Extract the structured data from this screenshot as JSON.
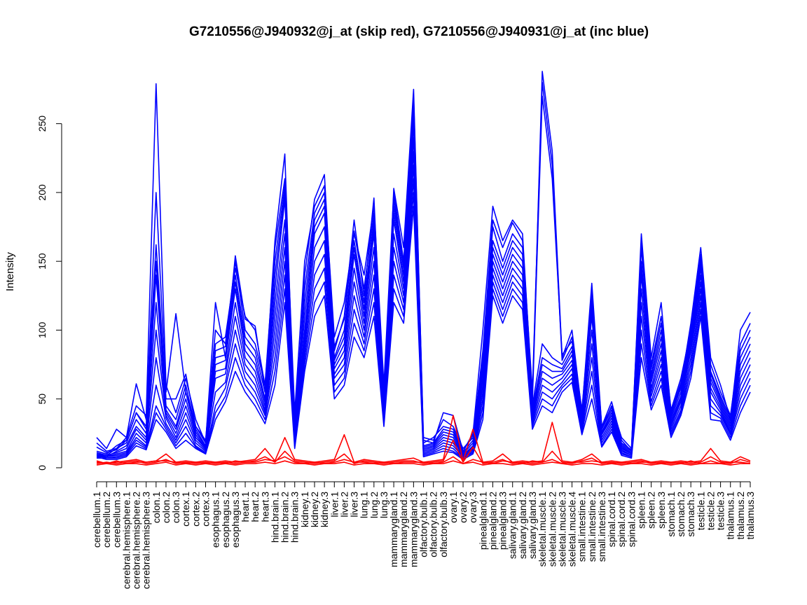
{
  "chart_data": {
    "type": "line",
    "title": "G7210556@J940932@j_at (skip red), G7210556@J940931@j_at (inc blue)",
    "xlabel": "",
    "ylabel": "Intensity",
    "ylim": [
      0,
      290
    ],
    "yticks": [
      0,
      50,
      100,
      150,
      200,
      250
    ],
    "grid": false,
    "legend": "none",
    "colors": {
      "skip": "#ff0000",
      "inc": "#0000ff"
    },
    "categories": [
      "cerebellum.1",
      "cerebellum.2",
      "cerebellum.3",
      "cerebral.hemisphere.1",
      "cerebral.hemisphere.2",
      "cerebral.hemisphere.3",
      "colon.1",
      "colon.2",
      "colon.3",
      "cortex.1",
      "cortex.2",
      "cortex.3",
      "esophagus.1",
      "esophagus.2",
      "esophagus.3",
      "heart.1",
      "heart.2",
      "heart.3",
      "hind.brain.1",
      "hind.brain.2",
      "hind.brain.3",
      "kidney.1",
      "kidney.2",
      "kidney.3",
      "liver.1",
      "liver.2",
      "liver.3",
      "lung.1",
      "lung.2",
      "lung.3",
      "mammarygland.1",
      "mammarygland.2",
      "mammarygland.3",
      "olfactory.bulb.1",
      "olfactory.bulb.2",
      "olfactory.bulb.3",
      "ovary.1",
      "ovary.2",
      "ovary.3",
      "pinealgland.1",
      "pinealgland.2",
      "pinealgland.3",
      "salivary.gland.1",
      "salivary.gland.2",
      "salivary.gland.3",
      "skeletal.muscle.1",
      "skeletal.muscle.2",
      "skeletal.muscle.3",
      "skeletal.muscle.4",
      "small.intestine.1",
      "small.intestine.2",
      "small.intestine.3",
      "spinal.cord.1",
      "spinal.cord.2",
      "spinal.cord.3",
      "spleen.1",
      "spleen.2",
      "spleen.3",
      "stomach.1",
      "stomach.2",
      "stomach.3",
      "testicle.1",
      "testicle.2",
      "testicle.3",
      "thalamus.1",
      "thalamus.2",
      "thalamus.3"
    ],
    "series": [
      {
        "group": "inc",
        "values": [
          18,
          12,
          14,
          22,
          45,
          38,
          279,
          60,
          40,
          65,
          35,
          18,
          120,
          80,
          154,
          108,
          103,
          55,
          165,
          228,
          22,
          140,
          195,
          213,
          85,
          110,
          180,
          125,
          196,
          40,
          203,
          160,
          275,
          20,
          18,
          40,
          38,
          12,
          25,
          100,
          190,
          165,
          180,
          170,
          50,
          288,
          230,
          80,
          100,
          40,
          134,
          30,
          48,
          20,
          12,
          170,
          80,
          120,
          40,
          60,
          105,
          160,
          80,
          60,
          35,
          100,
          113
        ]
      },
      {
        "group": "inc",
        "values": [
          15,
          11,
          13,
          20,
          40,
          30,
          200,
          55,
          112,
          55,
          30,
          20,
          100,
          90,
          150,
          100,
          90,
          60,
          160,
          210,
          40,
          150,
          190,
          205,
          95,
          120,
          170,
          140,
          190,
          60,
          200,
          150,
          270,
          22,
          20,
          35,
          30,
          14,
          22,
          85,
          180,
          160,
          178,
          165,
          55,
          280,
          220,
          78,
          95,
          38,
          130,
          28,
          45,
          22,
          14,
          165,
          75,
          110,
          42,
          65,
          100,
          155,
          75,
          55,
          38,
          90,
          105
        ]
      },
      {
        "group": "inc",
        "values": [
          22,
          14,
          28,
          22,
          61,
          35,
          162,
          50,
          50,
          68,
          30,
          18,
          90,
          95,
          145,
          110,
          100,
          60,
          150,
          205,
          35,
          130,
          185,
          200,
          88,
          108,
          172,
          130,
          185,
          55,
          195,
          148,
          265,
          18,
          22,
          30,
          28,
          12,
          24,
          80,
          175,
          150,
          170,
          160,
          48,
          270,
          210,
          82,
          92,
          42,
          125,
          30,
          44,
          18,
          13,
          160,
          72,
          105,
          40,
          62,
          102,
          152,
          70,
          52,
          36,
          85,
          100
        ]
      },
      {
        "group": "inc",
        "values": [
          12,
          10,
          16,
          20,
          40,
          28,
          150,
          45,
          35,
          60,
          28,
          16,
          85,
          88,
          140,
          95,
          85,
          55,
          140,
          200,
          30,
          120,
          180,
          195,
          80,
          100,
          165,
          120,
          180,
          50,
          190,
          145,
          260,
          16,
          18,
          28,
          26,
          11,
          20,
          75,
          165,
          145,
          165,
          155,
          45,
          90,
          80,
          75,
          88,
          40,
          120,
          28,
          42,
          17,
          12,
          150,
          68,
          100,
          38,
          58,
          98,
          148,
          68,
          50,
          34,
          80,
          95
        ]
      },
      {
        "group": "inc",
        "values": [
          10,
          9,
          14,
          18,
          35,
          25,
          140,
          42,
          30,
          55,
          26,
          15,
          80,
          82,
          135,
          90,
          80,
          50,
          130,
          195,
          28,
          110,
          175,
          190,
          78,
          95,
          160,
          115,
          175,
          48,
          185,
          140,
          255,
          15,
          17,
          26,
          24,
          10,
          18,
          70,
          160,
          140,
          160,
          150,
          42,
          80,
          75,
          72,
          85,
          38,
          115,
          26,
          40,
          16,
          11,
          145,
          65,
          95,
          36,
          55,
          95,
          145,
          65,
          48,
          32,
          75,
          90
        ]
      },
      {
        "group": "inc",
        "values": [
          9,
          8,
          12,
          16,
          30,
          22,
          120,
          40,
          28,
          50,
          24,
          14,
          75,
          78,
          130,
          85,
          75,
          48,
          120,
          180,
          26,
          100,
          170,
          185,
          75,
          90,
          155,
          110,
          170,
          45,
          180,
          135,
          250,
          14,
          16,
          24,
          22,
          9,
          16,
          65,
          155,
          135,
          155,
          145,
          40,
          75,
          70,
          70,
          82,
          36,
          110,
          25,
          38,
          15,
          10,
          140,
          62,
          90,
          34,
          52,
          92,
          140,
          62,
          46,
          30,
          70,
          85
        ]
      },
      {
        "group": "inc",
        "values": [
          11,
          9,
          11,
          14,
          28,
          20,
          100,
          38,
          25,
          45,
          22,
          14,
          70,
          72,
          120,
          80,
          70,
          45,
          110,
          170,
          24,
          95,
          160,
          175,
          72,
          85,
          145,
          105,
          160,
          42,
          170,
          130,
          240,
          13,
          15,
          22,
          20,
          9,
          15,
          60,
          150,
          130,
          150,
          140,
          38,
          70,
          65,
          68,
          78,
          34,
          100,
          24,
          36,
          14,
          10,
          130,
          58,
          85,
          32,
          50,
          88,
          135,
          58,
          44,
          28,
          65,
          80
        ]
      },
      {
        "group": "inc",
        "values": [
          8,
          8,
          10,
          12,
          25,
          18,
          80,
          36,
          22,
          40,
          20,
          13,
          65,
          68,
          110,
          75,
          65,
          42,
          100,
          160,
          22,
          90,
          150,
          165,
          68,
          80,
          135,
          100,
          150,
          40,
          160,
          125,
          230,
          12,
          14,
          20,
          18,
          8,
          14,
          55,
          145,
          125,
          145,
          135,
          36,
          65,
          60,
          65,
          75,
          32,
          90,
          22,
          34,
          13,
          9,
          120,
          55,
          80,
          30,
          48,
          85,
          130,
          55,
          42,
          26,
          60,
          75
        ]
      },
      {
        "group": "inc",
        "values": [
          10,
          8,
          9,
          11,
          22,
          16,
          60,
          32,
          20,
          35,
          18,
          12,
          55,
          62,
          100,
          70,
          60,
          40,
          90,
          150,
          20,
          85,
          140,
          155,
          65,
          75,
          125,
          95,
          140,
          38,
          150,
          120,
          220,
          11,
          13,
          18,
          16,
          8,
          13,
          50,
          140,
          120,
          140,
          130,
          34,
          60,
          55,
          62,
          72,
          30,
          80,
          20,
          32,
          12,
          9,
          110,
          52,
          75,
          28,
          45,
          80,
          125,
          50,
          40,
          25,
          55,
          70
        ]
      },
      {
        "group": "inc",
        "values": [
          7,
          7,
          8,
          10,
          20,
          15,
          45,
          30,
          18,
          30,
          16,
          11,
          45,
          58,
          90,
          65,
          55,
          38,
          80,
          140,
          18,
          80,
          130,
          145,
          60,
          70,
          115,
          90,
          130,
          35,
          140,
          115,
          210,
          10,
          12,
          16,
          14,
          7,
          12,
          45,
          135,
          115,
          135,
          125,
          32,
          55,
          50,
          60,
          68,
          28,
          70,
          18,
          30,
          11,
          8,
          100,
          48,
          70,
          26,
          42,
          75,
          120,
          45,
          38,
          24,
          50,
          65
        ]
      },
      {
        "group": "inc",
        "values": [
          9,
          7,
          7,
          9,
          18,
          14,
          40,
          28,
          16,
          25,
          15,
          10,
          40,
          52,
          80,
          60,
          50,
          35,
          70,
          130,
          16,
          75,
          120,
          135,
          55,
          65,
          105,
          85,
          120,
          32,
          130,
          110,
          200,
          9,
          11,
          14,
          12,
          7,
          11,
          40,
          130,
          110,
          130,
          120,
          30,
          50,
          45,
          58,
          65,
          26,
          60,
          16,
          28,
          10,
          8,
          90,
          45,
          65,
          24,
          40,
          70,
          115,
          40,
          36,
          22,
          45,
          60
        ]
      },
      {
        "group": "inc",
        "values": [
          8,
          6,
          6,
          8,
          16,
          13,
          35,
          26,
          14,
          20,
          14,
          10,
          35,
          48,
          70,
          55,
          45,
          32,
          60,
          120,
          14,
          70,
          110,
          125,
          50,
          60,
          95,
          80,
          110,
          30,
          120,
          105,
          190,
          8,
          10,
          12,
          11,
          6,
          10,
          35,
          125,
          105,
          125,
          115,
          28,
          45,
          40,
          55,
          62,
          24,
          50,
          15,
          26,
          9,
          7,
          80,
          42,
          60,
          22,
          38,
          65,
          110,
          35,
          34,
          20,
          40,
          55
        ]
      }
    ],
    "series_skip": [
      {
        "group": "skip",
        "values": [
          5,
          3,
          4,
          5,
          6,
          4,
          5,
          10,
          4,
          5,
          4,
          5,
          4,
          5,
          4,
          5,
          6,
          14,
          5,
          22,
          6,
          5,
          4,
          5,
          6,
          24,
          4,
          6,
          5,
          4,
          5,
          6,
          7,
          4,
          5,
          6,
          38,
          5,
          28,
          4,
          5,
          10,
          4,
          5,
          4,
          5,
          33,
          5,
          4,
          6,
          10,
          4,
          5,
          4,
          5,
          6,
          4,
          5,
          4,
          5,
          4,
          5,
          14,
          5,
          4,
          8,
          5
        ]
      },
      {
        "group": "skip",
        "values": [
          3,
          4,
          3,
          4,
          5,
          3,
          4,
          6,
          3,
          4,
          3,
          4,
          3,
          4,
          3,
          4,
          5,
          8,
          4,
          12,
          5,
          4,
          3,
          4,
          5,
          10,
          3,
          5,
          4,
          3,
          4,
          5,
          5,
          3,
          4,
          5,
          20,
          4,
          15,
          3,
          4,
          6,
          3,
          4,
          3,
          4,
          12,
          4,
          3,
          5,
          7,
          3,
          4,
          3,
          4,
          5,
          3,
          4,
          3,
          4,
          3,
          4,
          8,
          4,
          3,
          6,
          4
        ]
      },
      {
        "group": "skip",
        "values": [
          4,
          3,
          5,
          3,
          4,
          4,
          5,
          5,
          4,
          3,
          4,
          3,
          4,
          3,
          5,
          4,
          4,
          6,
          5,
          8,
          4,
          3,
          4,
          3,
          4,
          6,
          4,
          4,
          3,
          4,
          3,
          4,
          4,
          4,
          3,
          4,
          8,
          3,
          6,
          4,
          3,
          5,
          4,
          3,
          5,
          4,
          6,
          3,
          4,
          4,
          5,
          4,
          3,
          4,
          3,
          4,
          4,
          3,
          4,
          3,
          5,
          3,
          5,
          3,
          4,
          4,
          3
        ]
      },
      {
        "group": "skip",
        "values": [
          2,
          3,
          2,
          3,
          3,
          2,
          3,
          4,
          2,
          3,
          2,
          3,
          2,
          3,
          2,
          3,
          3,
          4,
          3,
          5,
          3,
          3,
          2,
          3,
          3,
          4,
          2,
          3,
          3,
          2,
          3,
          3,
          3,
          2,
          3,
          3,
          5,
          3,
          4,
          2,
          3,
          3,
          2,
          3,
          2,
          3,
          4,
          3,
          2,
          3,
          3,
          2,
          3,
          2,
          3,
          3,
          2,
          3,
          2,
          3,
          2,
          3,
          3,
          3,
          2,
          3,
          3
        ]
      }
    ]
  }
}
